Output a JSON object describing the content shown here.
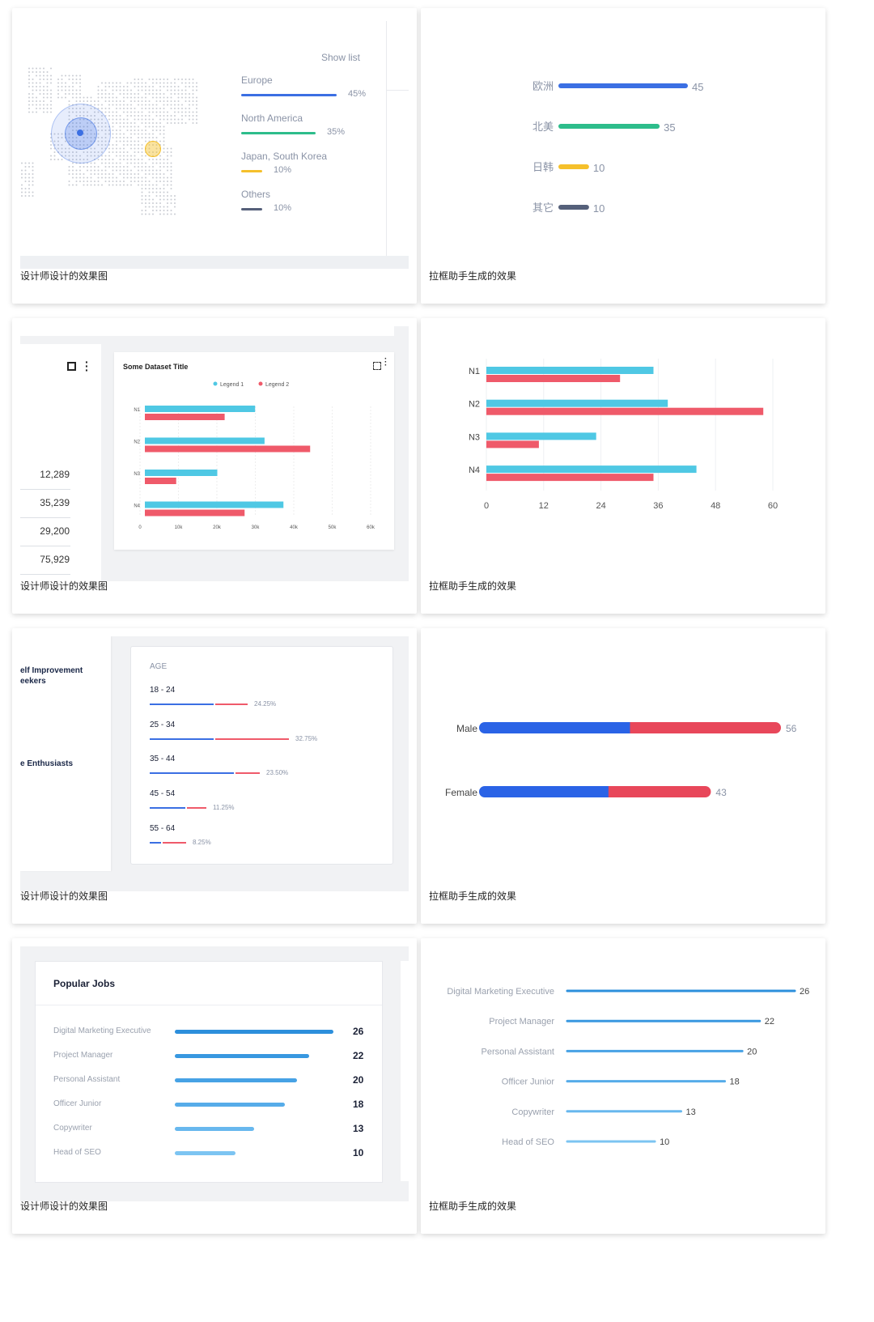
{
  "captions": {
    "designer": "设计师设计的效果图",
    "generated": "拉框助手生成的效果"
  },
  "colors": {
    "blue": "#3b6fe3",
    "green": "#2dbd8b",
    "yellow": "#f5c02b",
    "dark": "#55607a",
    "cyan": "#4fc8e4",
    "red": "#ef5a6a"
  },
  "panel1": {
    "show_list": "Show list",
    "items": [
      {
        "name": "Europe",
        "pct": "45%",
        "value": 45,
        "color": "#3b6fe3"
      },
      {
        "name": "North America",
        "pct": "35%",
        "value": 35,
        "color": "#2dbd8b"
      },
      {
        "name": "Japan, South Korea",
        "pct": "10%",
        "value": 10,
        "color": "#f5c02b"
      },
      {
        "name": "Others",
        "pct": "10%",
        "value": 10,
        "color": "#55607a"
      }
    ],
    "chart_data": {
      "type": "bar",
      "orientation": "horizontal",
      "categories": [
        "欧洲",
        "北美",
        "日韩",
        "其它"
      ],
      "values": [
        45,
        35,
        10,
        10
      ],
      "colors": [
        "#3b6fe3",
        "#2dbd8b",
        "#f5c02b",
        "#55607a"
      ]
    }
  },
  "panel2": {
    "title": "Some Dataset Title",
    "legend": [
      "Legend 1",
      "Legend 2"
    ],
    "table_values": [
      "12,289",
      "35,239",
      "29,200",
      "75,929"
    ],
    "design_ticks": [
      "0",
      "10k",
      "20k",
      "30k",
      "40k",
      "50k",
      "60k"
    ],
    "chart_data": {
      "type": "bar",
      "orientation": "horizontal",
      "categories": [
        "N1",
        "N2",
        "N3",
        "N4"
      ],
      "series": [
        {
          "name": "Legend 1",
          "values": [
            35,
            38,
            23,
            44
          ]
        },
        {
          "name": "Legend 2",
          "values": [
            28,
            58,
            11,
            35
          ]
        }
      ],
      "xlim": [
        0,
        60
      ],
      "xticks": [
        0,
        12,
        24,
        36,
        48,
        60
      ]
    }
  },
  "panel3": {
    "sidebar_labels": [
      "elf Improvement",
      "eekers",
      "e Enthusiasts"
    ],
    "age_header": "AGE",
    "age_rows": [
      {
        "label": "18 - 24",
        "pct": "24.25%",
        "a": 0.55,
        "b": 0.28
      },
      {
        "label": "25 - 34",
        "pct": "32.75%",
        "a": 0.55,
        "b": 0.64
      },
      {
        "label": "35 - 44",
        "pct": "23.50%",
        "a": 0.73,
        "b": 0.21
      },
      {
        "label": "45 - 54",
        "pct": "11.25%",
        "a": 0.31,
        "b": 0.17
      },
      {
        "label": "55 - 64",
        "pct": "8.25%",
        "a": 0.1,
        "b": 0.2
      }
    ],
    "chart_data": {
      "type": "bar",
      "orientation": "horizontal-stacked",
      "categories": [
        "Male",
        "Female"
      ],
      "totals": [
        56,
        43
      ],
      "series": [
        {
          "name": "blue",
          "values": [
            28,
            24
          ]
        },
        {
          "name": "red",
          "values": [
            28,
            19
          ]
        }
      ]
    }
  },
  "panel4": {
    "title": "Popular Jobs",
    "chart_data": {
      "type": "bar",
      "orientation": "horizontal",
      "categories": [
        "Digital Marketing Executive",
        "Project Manager",
        "Personal Assistant",
        "Officer Junior",
        "Copywriter",
        "Head of SEO"
      ],
      "values": [
        26,
        22,
        20,
        18,
        13,
        10
      ]
    },
    "colors": [
      "#2c8fdc",
      "#3898e0",
      "#47a2e5",
      "#56ace9",
      "#68b8ee",
      "#7cc4f2"
    ]
  }
}
